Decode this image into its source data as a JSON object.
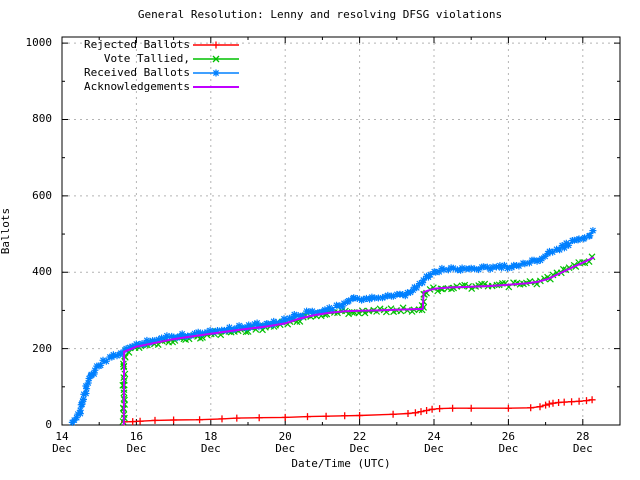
{
  "chart_data": {
    "type": "line",
    "title": "General Resolution: Lenny and resolving DFSG violations",
    "xlabel": "Date/Time (UTC)",
    "ylabel": "Ballots",
    "grid": "dashed-gray-at-major-ticks",
    "legend_position": "top-left-inside",
    "x_axis": {
      "unit": "date-december",
      "range": [
        14,
        29
      ],
      "major_ticks": [
        {
          "day": 14,
          "line1": "14",
          "line2": "Dec"
        },
        {
          "day": 16,
          "line1": "16",
          "line2": "Dec"
        },
        {
          "day": 18,
          "line1": "18",
          "line2": "Dec"
        },
        {
          "day": 20,
          "line1": "20",
          "line2": "Dec"
        },
        {
          "day": 22,
          "line1": "22",
          "line2": "Dec"
        },
        {
          "day": 24,
          "line1": "24",
          "line2": "Dec"
        },
        {
          "day": 26,
          "line1": "26",
          "line2": "Dec"
        },
        {
          "day": 28,
          "line1": "28",
          "line2": "Dec"
        }
      ],
      "minor_ticks": [
        15,
        17,
        19,
        21,
        23,
        25,
        27
      ]
    },
    "y_axis": {
      "range": [
        0,
        1000
      ],
      "major_ticks": [
        0,
        200,
        400,
        600,
        800,
        1000
      ],
      "minor_ticks": [
        100,
        300,
        500,
        700,
        900
      ]
    },
    "series": [
      {
        "name": "Rejected Ballots",
        "color": "#ff0000",
        "marker": "plus",
        "band": false,
        "points": [
          [
            15.68,
            8
          ],
          [
            15.9,
            9
          ],
          [
            16.1,
            10
          ],
          [
            16.5,
            12
          ],
          [
            17.0,
            13
          ],
          [
            17.7,
            14
          ],
          [
            18.3,
            16
          ],
          [
            18.7,
            18
          ],
          [
            19.3,
            19
          ],
          [
            20.0,
            20
          ],
          [
            20.6,
            22
          ],
          [
            21.1,
            23
          ],
          [
            21.6,
            24
          ],
          [
            22.0,
            25
          ],
          [
            22.9,
            28
          ],
          [
            23.3,
            30
          ],
          [
            23.5,
            32
          ],
          [
            23.65,
            35
          ],
          [
            23.8,
            38
          ],
          [
            23.95,
            41
          ],
          [
            24.15,
            43
          ],
          [
            24.5,
            44
          ],
          [
            25.0,
            44
          ],
          [
            26.0,
            44
          ],
          [
            26.6,
            45
          ],
          [
            26.85,
            48
          ],
          [
            27.0,
            52
          ],
          [
            27.1,
            55
          ],
          [
            27.2,
            57
          ],
          [
            27.35,
            59
          ],
          [
            27.5,
            60
          ],
          [
            27.7,
            61
          ],
          [
            27.9,
            62
          ],
          [
            28.1,
            64
          ],
          [
            28.25,
            66
          ]
        ]
      },
      {
        "name": "Vote Tallied,",
        "color": "#00c000",
        "marker": "cross",
        "band": true,
        "points": [
          [
            15.66,
            0
          ],
          [
            15.67,
            190
          ],
          [
            15.8,
            196
          ],
          [
            16.0,
            202
          ],
          [
            16.3,
            210
          ],
          [
            16.6,
            216
          ],
          [
            17.0,
            222
          ],
          [
            17.4,
            228
          ],
          [
            17.8,
            234
          ],
          [
            18.2,
            240
          ],
          [
            18.6,
            245
          ],
          [
            19.0,
            250
          ],
          [
            19.4,
            255
          ],
          [
            19.8,
            261
          ],
          [
            20.1,
            268
          ],
          [
            20.4,
            277
          ],
          [
            20.7,
            285
          ],
          [
            21.0,
            290
          ],
          [
            21.3,
            294
          ],
          [
            21.6,
            296
          ],
          [
            22.0,
            297
          ],
          [
            22.4,
            298
          ],
          [
            22.8,
            301
          ],
          [
            23.2,
            302
          ],
          [
            23.7,
            303
          ],
          [
            23.72,
            347
          ],
          [
            23.85,
            352
          ],
          [
            24.0,
            356
          ],
          [
            24.3,
            359
          ],
          [
            24.7,
            361
          ],
          [
            25.1,
            362
          ],
          [
            25.5,
            364
          ],
          [
            25.9,
            366
          ],
          [
            26.2,
            368
          ],
          [
            26.5,
            370
          ],
          [
            26.8,
            374
          ],
          [
            27.0,
            381
          ],
          [
            27.2,
            390
          ],
          [
            27.4,
            399
          ],
          [
            27.6,
            408
          ],
          [
            27.8,
            417
          ],
          [
            28.0,
            426
          ],
          [
            28.15,
            432
          ],
          [
            28.3,
            438
          ]
        ]
      },
      {
        "name": "Received Ballots",
        "color": "#0080ff",
        "marker": "star",
        "band": true,
        "points": [
          [
            14.25,
            2
          ],
          [
            14.33,
            10
          ],
          [
            14.42,
            22
          ],
          [
            14.5,
            45
          ],
          [
            14.58,
            75
          ],
          [
            14.67,
            105
          ],
          [
            14.75,
            125
          ],
          [
            14.85,
            140
          ],
          [
            14.95,
            152
          ],
          [
            15.1,
            162
          ],
          [
            15.25,
            172
          ],
          [
            15.4,
            180
          ],
          [
            15.55,
            188
          ],
          [
            15.7,
            197
          ],
          [
            15.85,
            203
          ],
          [
            16.0,
            208
          ],
          [
            16.2,
            216
          ],
          [
            16.4,
            222
          ],
          [
            16.7,
            227
          ],
          [
            17.0,
            232
          ],
          [
            17.3,
            236
          ],
          [
            17.6,
            240
          ],
          [
            17.9,
            244
          ],
          [
            18.2,
            249
          ],
          [
            18.5,
            253
          ],
          [
            18.8,
            257
          ],
          [
            19.1,
            260
          ],
          [
            19.4,
            264
          ],
          [
            19.7,
            269
          ],
          [
            19.95,
            274
          ],
          [
            20.2,
            282
          ],
          [
            20.45,
            290
          ],
          [
            20.7,
            296
          ],
          [
            20.95,
            301
          ],
          [
            21.2,
            305
          ],
          [
            21.45,
            310
          ],
          [
            21.6,
            318
          ],
          [
            21.75,
            326
          ],
          [
            21.9,
            329
          ],
          [
            22.1,
            331
          ],
          [
            22.35,
            333
          ],
          [
            22.6,
            334
          ],
          [
            22.9,
            336
          ],
          [
            23.1,
            338
          ],
          [
            23.3,
            342
          ],
          [
            23.45,
            352
          ],
          [
            23.6,
            366
          ],
          [
            23.75,
            380
          ],
          [
            23.9,
            393
          ],
          [
            24.05,
            402
          ],
          [
            24.2,
            406
          ],
          [
            24.4,
            408
          ],
          [
            24.7,
            410
          ],
          [
            25.0,
            411
          ],
          [
            25.3,
            412
          ],
          [
            25.6,
            413
          ],
          [
            25.9,
            414
          ],
          [
            26.1,
            416
          ],
          [
            26.3,
            420
          ],
          [
            26.5,
            424
          ],
          [
            26.7,
            430
          ],
          [
            26.9,
            440
          ],
          [
            27.1,
            450
          ],
          [
            27.3,
            459
          ],
          [
            27.5,
            468
          ],
          [
            27.7,
            477
          ],
          [
            27.9,
            486
          ],
          [
            28.05,
            493
          ],
          [
            28.2,
            500
          ],
          [
            28.32,
            508
          ]
        ]
      },
      {
        "name": "Acknowledgements",
        "color": "#c000ff",
        "marker": "none",
        "band": false,
        "points": [
          [
            15.66,
            0
          ],
          [
            15.67,
            192
          ],
          [
            16.0,
            205
          ],
          [
            16.5,
            215
          ],
          [
            17.0,
            225
          ],
          [
            17.5,
            232
          ],
          [
            18.0,
            239
          ],
          [
            18.5,
            246
          ],
          [
            19.0,
            252
          ],
          [
            19.5,
            258
          ],
          [
            20.0,
            266
          ],
          [
            20.4,
            279
          ],
          [
            20.8,
            288
          ],
          [
            21.2,
            294
          ],
          [
            21.6,
            298
          ],
          [
            22.0,
            299
          ],
          [
            22.5,
            300
          ],
          [
            23.0,
            302
          ],
          [
            23.7,
            304
          ],
          [
            23.72,
            348
          ],
          [
            24.0,
            357
          ],
          [
            24.4,
            360
          ],
          [
            25.0,
            362
          ],
          [
            25.5,
            364
          ],
          [
            26.0,
            367
          ],
          [
            26.5,
            371
          ],
          [
            26.8,
            375
          ],
          [
            27.1,
            384
          ],
          [
            27.4,
            398
          ],
          [
            27.7,
            412
          ],
          [
            28.0,
            425
          ],
          [
            28.3,
            439
          ]
        ]
      }
    ],
    "colors": {
      "frame": "#000000",
      "grid": "#b4b4b4",
      "background": "#ffffff"
    }
  }
}
